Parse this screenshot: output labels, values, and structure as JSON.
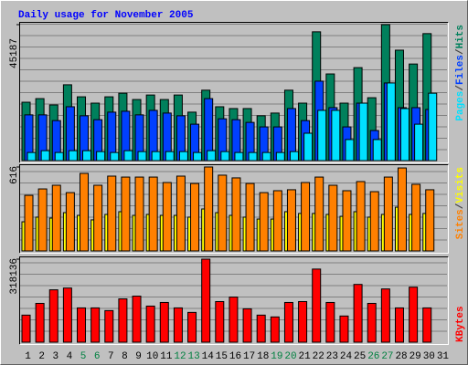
{
  "title": "Daily usage for November 2005",
  "chart_data": [
    {
      "type": "bar",
      "ylim": [
        0,
        45187
      ],
      "yticks": [
        45187
      ],
      "legend_separator": "/",
      "series": [
        {
          "name": "Hits",
          "color": "#00805c",
          "values": [
            19400,
            20600,
            18500,
            25200,
            21200,
            19100,
            21200,
            22400,
            20300,
            21800,
            20300,
            21800,
            16100,
            23400,
            17900,
            17300,
            17300,
            14900,
            15800,
            23400,
            19100,
            42800,
            28800,
            19100,
            30900,
            20900,
            45187,
            36700,
            32100,
            42200,
            null
          ]
        },
        {
          "name": "Files",
          "color": "#0040ff",
          "values": [
            15200,
            15200,
            13300,
            17900,
            14900,
            13600,
            16100,
            16400,
            15200,
            16700,
            15800,
            14900,
            12100,
            20600,
            13900,
            13600,
            12700,
            11200,
            11200,
            17300,
            13300,
            26400,
            17600,
            11200,
            19100,
            10000,
            25800,
            17600,
            17600,
            17000,
            null
          ]
        },
        {
          "name": "Pages",
          "color": "#00e0ff",
          "values": [
            2700,
            3300,
            2700,
            3300,
            3300,
            3000,
            2700,
            3300,
            3000,
            3000,
            3000,
            3000,
            2700,
            3300,
            3000,
            2700,
            2700,
            2700,
            2700,
            3000,
            9100,
            16700,
            16700,
            7000,
            19100,
            7000,
            25800,
            17300,
            12100,
            22400,
            null
          ]
        }
      ]
    },
    {
      "type": "bar",
      "ylim": [
        0,
        616
      ],
      "yticks": [
        616
      ],
      "legend_separator": "/",
      "series": [
        {
          "name": "Visits",
          "color": "#ffff00",
          "values": [
            214,
            248,
            241,
            281,
            261,
            228,
            268,
            288,
            261,
            268,
            261,
            261,
            248,
            308,
            281,
            261,
            248,
            234,
            234,
            288,
            275,
            275,
            268,
            254,
            288,
            248,
            268,
            321,
            268,
            275,
            null
          ]
        },
        {
          "name": "Sites",
          "color": "#ff8000",
          "values": [
            408,
            455,
            482,
            428,
            569,
            482,
            549,
            542,
            542,
            542,
            502,
            549,
            495,
            616,
            556,
            536,
            495,
            428,
            442,
            449,
            502,
            542,
            482,
            442,
            509,
            435,
            542,
            609,
            489,
            449,
            null
          ]
        }
      ]
    },
    {
      "type": "bar",
      "ylim": [
        0,
        318136
      ],
      "yticks": [
        318136
      ],
      "series": [
        {
          "name": "KBytes",
          "color": "#ff0000",
          "values": [
            103700,
            148700,
            200600,
            207500,
            131400,
            131400,
            121000,
            166000,
            176400,
            138300,
            152200,
            131400,
            114100,
            318136,
            155600,
            172900,
            127900,
            103700,
            96800,
            152200,
            155600,
            280100,
            152200,
            100300,
            221300,
            148700,
            204000,
            131400,
            210900,
            131400,
            null
          ]
        }
      ],
      "categories": [
        "1",
        "2",
        "3",
        "4",
        "5",
        "6",
        "7",
        "8",
        "9",
        "10",
        "11",
        "12",
        "13",
        "14",
        "15",
        "16",
        "17",
        "18",
        "19",
        "20",
        "21",
        "22",
        "23",
        "24",
        "25",
        "26",
        "27",
        "28",
        "29",
        "30",
        "31"
      ],
      "category_colors": [
        "#000000",
        "#000000",
        "#000000",
        "#000000",
        "#008040",
        "#008040",
        "#000000",
        "#000000",
        "#000000",
        "#000000",
        "#000000",
        "#008040",
        "#008040",
        "#000000",
        "#000000",
        "#000000",
        "#000000",
        "#000000",
        "#008040",
        "#008040",
        "#000000",
        "#000000",
        "#000000",
        "#000000",
        "#000000",
        "#008040",
        "#008040",
        "#000000",
        "#000000",
        "#000000",
        "#000000"
      ]
    }
  ]
}
